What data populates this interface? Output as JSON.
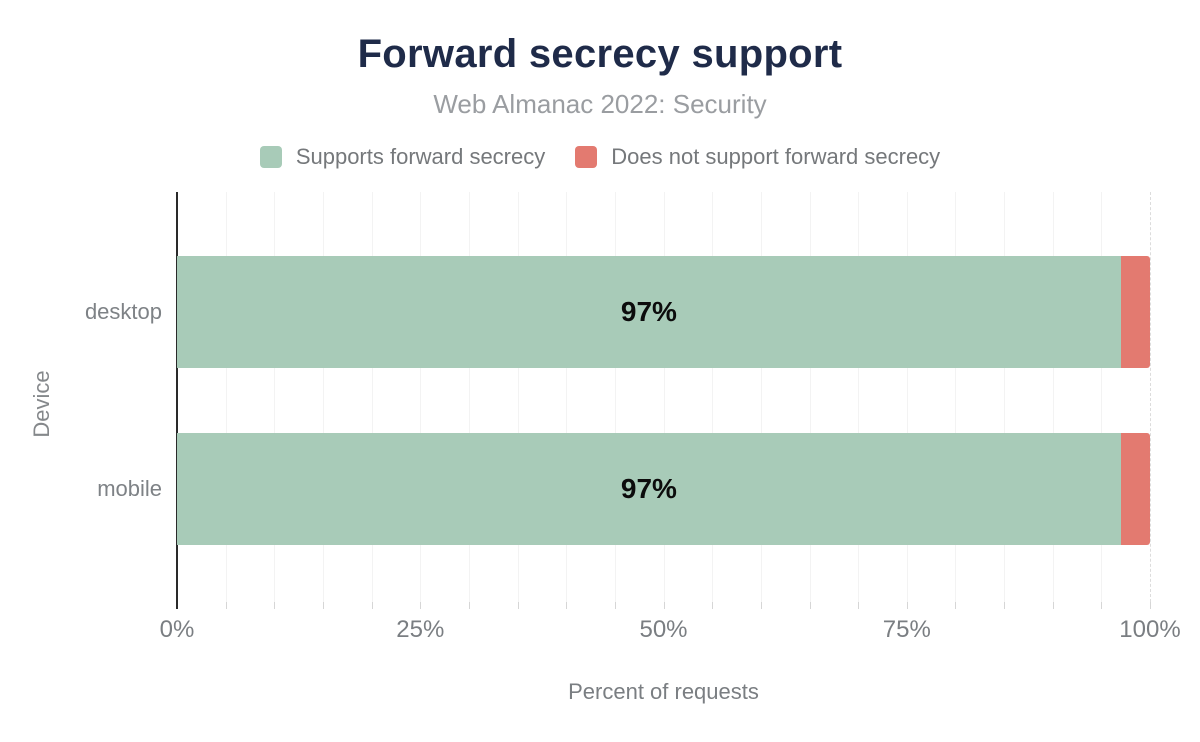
{
  "title": "Forward secrecy support",
  "subtitle": "Web Almanac 2022: Security",
  "legend": {
    "items": [
      {
        "label": "Supports forward secrecy",
        "color": "#a8cbb8"
      },
      {
        "label": "Does not support forward secrecy",
        "color": "#e37a70"
      }
    ]
  },
  "chart_data": {
    "type": "bar",
    "orientation": "horizontal",
    "stacked": true,
    "title": "Forward secrecy support",
    "subtitle": "Web Almanac 2022: Security",
    "categories": [
      "desktop",
      "mobile"
    ],
    "series": [
      {
        "name": "Supports forward secrecy",
        "color": "#a8cbb8",
        "values": [
          97,
          97
        ]
      },
      {
        "name": "Does not support forward secrecy",
        "color": "#e37a70",
        "values": [
          3,
          3
        ]
      }
    ],
    "bar_value_labels": [
      "97%",
      "97%"
    ],
    "xlabel": "Percent of requests",
    "ylabel": "Device",
    "xlim": [
      0,
      100
    ],
    "x_tick_values": [
      0,
      25,
      50,
      75,
      100
    ],
    "x_tick_labels": [
      "0%",
      "25%",
      "50%",
      "75%",
      "100%"
    ],
    "minor_tick_step_percent": 5,
    "grid": "vertical-minor-solid, 100%-dashed",
    "legend_position": "top"
  }
}
